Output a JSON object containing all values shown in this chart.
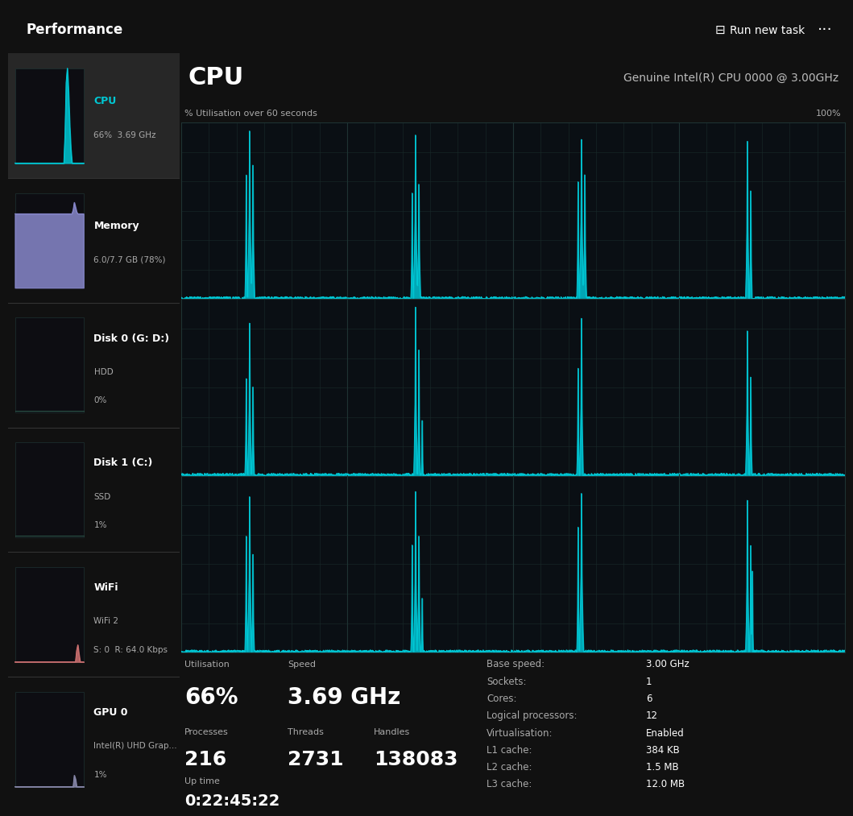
{
  "bg_color": "#111111",
  "sidebar_bg": "#1c1c1c",
  "sidebar_selected_bg": "#2a2a2a",
  "plot_bg": "#0a0f14",
  "grid_color": "#1a2a2a",
  "line_color": "#00c8d4",
  "fill_color": "#00b8c8",
  "separator_color": "#2a3a3a",
  "title_bar_bg": "#1a1a1a",
  "header_text": "Performance",
  "cpu_title": "CPU",
  "cpu_subtitle": "Genuine Intel(R) CPU 0000 @ 3.00GHz",
  "utilisation_label": "% Utilisation over 60 seconds",
  "percent_label": "100%",
  "sidebar_items": [
    {
      "name": "CPU",
      "detail": "66%  3.69 GHz",
      "color": "#00c8d4",
      "selected": true
    },
    {
      "name": "Memory",
      "detail": "6.0/7.7 GB (78%)",
      "color": "#8888dd",
      "selected": false
    },
    {
      "name": "Disk 0 (G: D:)",
      "sub": "HDD",
      "detail": "0%",
      "color": "#888888",
      "selected": false
    },
    {
      "name": "Disk 1 (C:)",
      "sub": "SSD",
      "detail": "1%",
      "color": "#888888",
      "selected": false
    },
    {
      "name": "WiFi",
      "sub": "WiFi 2",
      "detail": "S: 0  R: 64.0 Kbps",
      "color": "#888888",
      "selected": false
    },
    {
      "name": "GPU 0",
      "sub": "Intel(R) UHD Grap...",
      "detail": "1%",
      "color": "#888888",
      "selected": false
    }
  ],
  "stats": {
    "utilisation_label": "Utilisation",
    "utilisation_value": "66%",
    "speed_label": "Speed",
    "speed_value": "3.69 GHz",
    "processes_label": "Processes",
    "processes_value": "216",
    "threads_label": "Threads",
    "threads_value": "2731",
    "handles_label": "Handles",
    "handles_value": "138083",
    "uptime_label": "Up time",
    "uptime_value": "0:22:45:22",
    "base_speed_label": "Base speed:",
    "base_speed_value": "3.00 GHz",
    "sockets_label": "Sockets:",
    "sockets_value": "1",
    "cores_label": "Cores:",
    "cores_value": "6",
    "logical_label": "Logical processors:",
    "logical_value": "12",
    "virt_label": "Virtualisation:",
    "virt_value": "Enabled",
    "l1_label": "L1 cache:",
    "l1_value": "384 KB",
    "l2_label": "L2 cache:",
    "l2_value": "1.5 MB",
    "l3_label": "L3 cache:",
    "l3_value": "12.0 MB"
  },
  "n_rows": 3,
  "n_cols": 4
}
